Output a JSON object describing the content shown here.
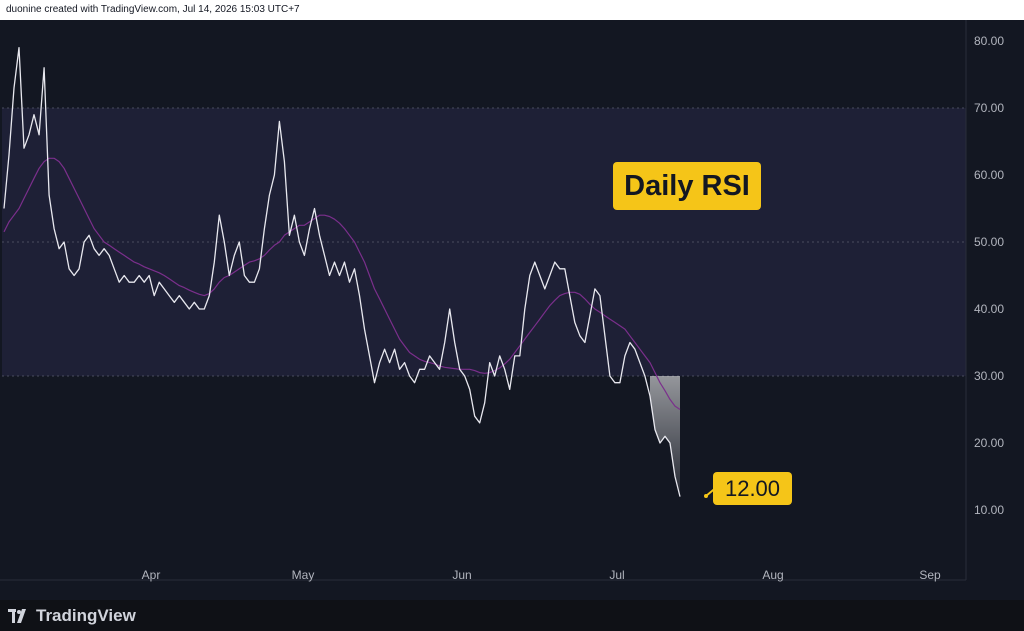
{
  "header": {
    "text": "duonine created with TradingView.com, Jul 14, 2026 15:03 UTC+7"
  },
  "footer": {
    "brand": "TradingView"
  },
  "annotations": {
    "title": "Daily RSI",
    "value_label": "12.00"
  },
  "colors": {
    "background": "#131722",
    "band": "#1e2036",
    "rsi_line": "#e8e8ef",
    "ma_line": "#7b2f8c",
    "accent": "#f5c518",
    "axis_text": "#b2b5be"
  },
  "chart_data": {
    "type": "line",
    "title": "Daily RSI",
    "ylim": [
      0,
      83.5
    ],
    "y_ticks": [
      "80.00",
      "70.00",
      "60.00",
      "50.00",
      "40.00",
      "30.00",
      "20.00",
      "10.00"
    ],
    "x_ticks": [
      "Apr",
      "May",
      "Jun",
      "Jul",
      "Aug",
      "Sep"
    ],
    "bands": {
      "upper": 70,
      "middle": 50,
      "lower": 30
    },
    "last_value": 12.0,
    "series": [
      {
        "values": [
          55,
          63,
          73,
          79,
          64,
          66,
          69,
          66,
          76,
          57,
          52,
          49,
          50,
          46,
          45,
          46,
          50,
          51,
          49,
          48,
          49,
          48,
          46,
          44,
          45,
          44,
          44,
          45,
          44,
          45,
          42,
          44,
          43,
          42,
          41,
          42,
          41,
          40,
          41,
          40,
          40,
          42,
          47,
          54,
          50,
          45,
          48,
          50,
          45,
          44,
          44,
          46,
          52,
          57,
          60,
          68,
          62,
          51,
          54,
          50,
          48,
          52,
          55,
          51,
          48,
          45,
          47,
          45,
          47,
          44,
          46,
          42,
          37,
          33,
          29,
          32,
          34,
          32,
          34,
          31,
          32,
          30,
          29,
          31,
          31,
          33,
          32,
          31,
          35,
          40,
          35,
          31,
          30,
          28,
          24,
          23,
          26,
          32,
          30,
          33,
          31,
          28,
          33,
          33,
          40,
          45,
          47,
          45,
          43,
          45,
          47,
          46,
          46,
          42,
          38,
          36,
          35,
          39,
          43,
          42,
          36,
          30,
          29,
          29,
          33,
          35,
          34,
          32,
          30,
          27,
          22,
          20,
          21,
          20,
          15,
          12
        ],
        "color": "#e8e8ef"
      },
      {
        "values": [
          51.5,
          53,
          54,
          55,
          56.5,
          58,
          59.5,
          61,
          62,
          62.5,
          62.5,
          62,
          61,
          59.5,
          58,
          56.5,
          55,
          53.5,
          52,
          51,
          50,
          49.5,
          49,
          48.5,
          48,
          47.5,
          47,
          46.7,
          46.3,
          46,
          45.7,
          45.4,
          45,
          44.5,
          44,
          43.5,
          43.2,
          42.8,
          42.5,
          42.2,
          42,
          42.3,
          43,
          44,
          44.7,
          45,
          45.5,
          46,
          46.5,
          47,
          47.2,
          47.5,
          48,
          48.8,
          49.5,
          50,
          51,
          51.5,
          52,
          52.5,
          52.5,
          53,
          53.5,
          54,
          54,
          53.8,
          53.4,
          52.8,
          52,
          51,
          50,
          48.5,
          47,
          45,
          43,
          41.5,
          40,
          38.5,
          37,
          35.5,
          34.5,
          33.5,
          33,
          32.5,
          32.2,
          32,
          31.8,
          31.5,
          31.3,
          31.2,
          31.1,
          31,
          31,
          31,
          30.8,
          30.5,
          30.4,
          30.5,
          30.8,
          31.2,
          31.8,
          32.5,
          33.5,
          34.5,
          35.5,
          36.5,
          37.5,
          38.5,
          39.5,
          40.5,
          41.3,
          42,
          42.3,
          42.5,
          42.5,
          42.2,
          41.5,
          40.7,
          40,
          39.5,
          39,
          38.5,
          38,
          37.5,
          37,
          36,
          35,
          34,
          33,
          32,
          30.5,
          29,
          27.8,
          26.5,
          25.5,
          25
        ],
        "color": "#7b2f8c"
      }
    ]
  }
}
